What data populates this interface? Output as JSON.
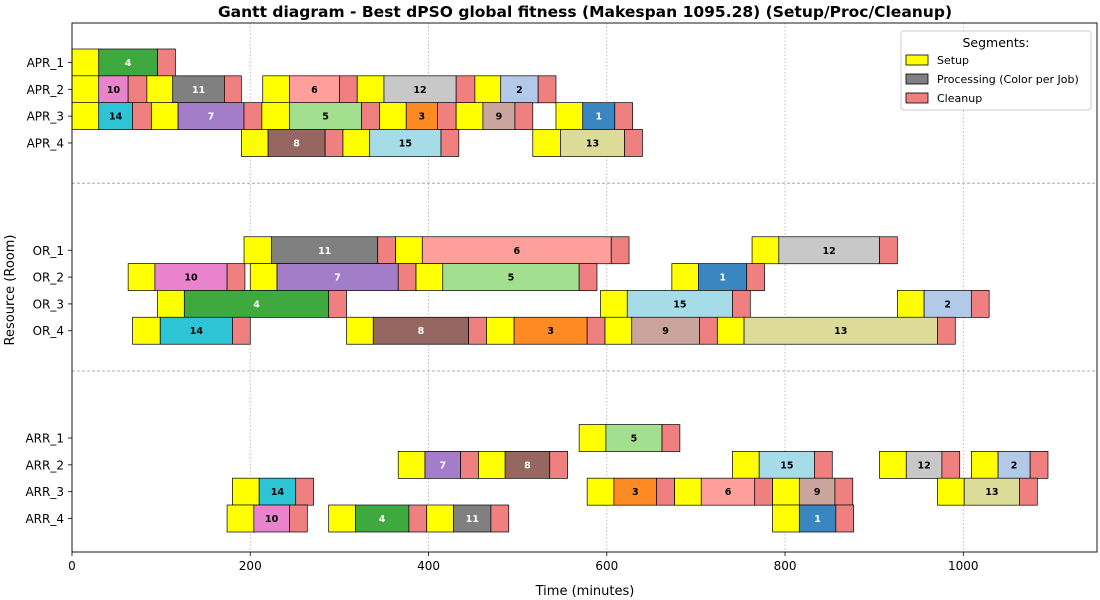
{
  "chart_data": {
    "type": "gantt",
    "title": "Gantt diagram - Best dPSO global fitness (Makespan 1095.28) (Setup/Proc/Cleanup)",
    "xlabel": "Time (minutes)",
    "ylabel": "Resource (Room)",
    "xlim": [
      0,
      1150
    ],
    "xticks": [
      0,
      200,
      400,
      600,
      800,
      1000
    ],
    "grid": true,
    "legend": {
      "title": "Segments:",
      "position": "top-right",
      "entries": [
        {
          "label": "Setup",
          "color": "#ffff00"
        },
        {
          "label": "Processing (Color per Job)",
          "color": "#808080"
        },
        {
          "label": "Cleanup",
          "color": "#f08080"
        }
      ]
    },
    "segment_colors": {
      "setup": "#ffff00",
      "cleanup": "#f08080"
    },
    "job_colors": {
      "1": "#3a86c0",
      "2": "#b3c9e8",
      "3": "#fd8a23",
      "4": "#3ea93e",
      "5": "#a2e08f",
      "6": "#ff9f9b",
      "7": "#a37dc7",
      "8": "#966660",
      "9": "#c9a59d",
      "10": "#e883cc",
      "11": "#808080",
      "12": "#c8c8c8",
      "13": "#dcdc98",
      "14": "#2dc4d6",
      "15": "#a6dce8"
    },
    "light_label_jobs": [
      "1",
      "4",
      "7",
      "8",
      "11"
    ],
    "groups": [
      {
        "rooms": [
          {
            "name": "APR_1",
            "tasks": [
              {
                "job": "4",
                "setup": [
                  0,
                  30
                ],
                "proc": [
                  30,
                  96
                ],
                "clean": [
                  96,
                  116
                ]
              }
            ]
          },
          {
            "name": "APR_2",
            "tasks": [
              {
                "job": "10",
                "setup": [
                  0,
                  30
                ],
                "proc": [
                  30,
                  63
                ],
                "clean": [
                  63,
                  84
                ]
              },
              {
                "job": "11",
                "setup": [
                  84,
                  113
                ],
                "proc": [
                  113,
                  171
                ],
                "clean": [
                  171,
                  190
                ]
              },
              {
                "job": "6",
                "setup": [
                  214,
                  244
                ],
                "proc": [
                  244,
                  300
                ],
                "clean": [
                  300,
                  320
                ]
              },
              {
                "job": "12",
                "setup": [
                  320,
                  350
                ],
                "proc": [
                  350,
                  431
                ],
                "clean": [
                  431,
                  452
                ]
              },
              {
                "job": "2",
                "setup": [
                  452,
                  481
                ],
                "proc": [
                  481,
                  523
                ],
                "clean": [
                  523,
                  543
                ]
              }
            ]
          },
          {
            "name": "APR_3",
            "tasks": [
              {
                "job": "14",
                "setup": [
                  0,
                  30
                ],
                "proc": [
                  30,
                  68
                ],
                "clean": [
                  68,
                  89
                ]
              },
              {
                "job": "7",
                "setup": [
                  89,
                  119
                ],
                "proc": [
                  119,
                  193
                ],
                "clean": [
                  193,
                  213
                ]
              },
              {
                "job": "5",
                "setup": [
                  213,
                  244
                ],
                "proc": [
                  244,
                  325
                ],
                "clean": [
                  325,
                  345
                ]
              },
              {
                "job": "3",
                "setup": [
                  345,
                  375
                ],
                "proc": [
                  375,
                  410
                ],
                "clean": [
                  410,
                  431
                ]
              },
              {
                "job": "9",
                "setup": [
                  431,
                  461
                ],
                "proc": [
                  461,
                  497
                ],
                "clean": [
                  497,
                  517
                ]
              },
              {
                "job": "1",
                "setup": [
                  543,
                  573
                ],
                "proc": [
                  573,
                  609
                ],
                "clean": [
                  609,
                  629
                ]
              }
            ]
          },
          {
            "name": "APR_4",
            "tasks": [
              {
                "job": "8",
                "setup": [
                  190,
                  220
                ],
                "proc": [
                  220,
                  284
                ],
                "clean": [
                  284,
                  304
                ]
              },
              {
                "job": "15",
                "setup": [
                  304,
                  334
                ],
                "proc": [
                  334,
                  414
                ],
                "clean": [
                  414,
                  434
                ]
              },
              {
                "job": "13",
                "setup": [
                  517,
                  548
                ],
                "proc": [
                  548,
                  620
                ],
                "clean": [
                  620,
                  640
                ]
              }
            ]
          }
        ]
      },
      {
        "rooms": [
          {
            "name": "OR_1",
            "tasks": [
              {
                "job": "11",
                "setup": [
                  193,
                  224
                ],
                "proc": [
                  224,
                  343
                ],
                "clean": [
                  343,
                  363
                ]
              },
              {
                "job": "6",
                "setup": [
                  363,
                  393
                ],
                "proc": [
                  393,
                  605
                ],
                "clean": [
                  605,
                  625
                ]
              },
              {
                "job": "12",
                "setup": [
                  763,
                  793
                ],
                "proc": [
                  793,
                  906
                ],
                "clean": [
                  906,
                  926
                ]
              }
            ]
          },
          {
            "name": "OR_2",
            "tasks": [
              {
                "job": "10",
                "setup": [
                  63,
                  93
                ],
                "proc": [
                  93,
                  174
                ],
                "clean": [
                  174,
                  194
                ]
              },
              {
                "job": "7",
                "setup": [
                  200,
                  230
                ],
                "proc": [
                  230,
                  366
                ],
                "clean": [
                  366,
                  386
                ]
              },
              {
                "job": "5",
                "setup": [
                  386,
                  416
                ],
                "proc": [
                  416,
                  569
                ],
                "clean": [
                  569,
                  589
                ]
              },
              {
                "job": "1",
                "setup": [
                  673,
                  703
                ],
                "proc": [
                  703,
                  757
                ],
                "clean": [
                  757,
                  777
                ]
              }
            ]
          },
          {
            "name": "OR_3",
            "tasks": [
              {
                "job": "4",
                "setup": [
                  96,
                  126
                ],
                "proc": [
                  126,
                  288
                ],
                "clean": [
                  288,
                  308
                ]
              },
              {
                "job": "15",
                "setup": [
                  593,
                  623
                ],
                "proc": [
                  623,
                  741
                ],
                "clean": [
                  741,
                  761
                ]
              },
              {
                "job": "2",
                "setup": [
                  926,
                  956
                ],
                "proc": [
                  956,
                  1009
                ],
                "clean": [
                  1009,
                  1029
                ]
              }
            ]
          },
          {
            "name": "OR_4",
            "tasks": [
              {
                "job": "14",
                "setup": [
                  68,
                  99
                ],
                "proc": [
                  99,
                  180
                ],
                "clean": [
                  180,
                  200
                ]
              },
              {
                "job": "8",
                "setup": [
                  308,
                  338
                ],
                "proc": [
                  338,
                  445
                ],
                "clean": [
                  445,
                  465
                ]
              },
              {
                "job": "3",
                "setup": [
                  465,
                  496
                ],
                "proc": [
                  496,
                  578
                ],
                "clean": [
                  578,
                  598
                ]
              },
              {
                "job": "9",
                "setup": [
                  598,
                  628
                ],
                "proc": [
                  628,
                  704
                ],
                "clean": [
                  704,
                  724
                ]
              },
              {
                "job": "13",
                "setup": [
                  724,
                  754
                ],
                "proc": [
                  754,
                  971
                ],
                "clean": [
                  971,
                  991
                ]
              }
            ]
          }
        ]
      },
      {
        "rooms": [
          {
            "name": "ARR_1",
            "tasks": [
              {
                "job": "5",
                "setup": [
                  569,
                  599
                ],
                "proc": [
                  599,
                  662
                ],
                "clean": [
                  662,
                  682
                ]
              }
            ]
          },
          {
            "name": "ARR_2",
            "tasks": [
              {
                "job": "7",
                "setup": [
                  366,
                  396
                ],
                "proc": [
                  396,
                  436
                ],
                "clean": [
                  436,
                  456
                ]
              },
              {
                "job": "8",
                "setup": [
                  456,
                  486
                ],
                "proc": [
                  486,
                  536
                ],
                "clean": [
                  536,
                  556
                ]
              },
              {
                "job": "15",
                "setup": [
                  741,
                  771
                ],
                "proc": [
                  771,
                  833
                ],
                "clean": [
                  833,
                  853
                ]
              },
              {
                "job": "12",
                "setup": [
                  906,
                  936
                ],
                "proc": [
                  936,
                  976
                ],
                "clean": [
                  976,
                  996
                ]
              },
              {
                "job": "2",
                "setup": [
                  1009,
                  1039
                ],
                "proc": [
                  1039,
                  1075
                ],
                "clean": [
                  1075,
                  1095
                ]
              }
            ]
          },
          {
            "name": "ARR_3",
            "tasks": [
              {
                "job": "14",
                "setup": [
                  180,
                  210
                ],
                "proc": [
                  210,
                  251
                ],
                "clean": [
                  251,
                  271
                ]
              },
              {
                "job": "3",
                "setup": [
                  578,
                  608
                ],
                "proc": [
                  608,
                  656
                ],
                "clean": [
                  656,
                  676
                ]
              },
              {
                "job": "6",
                "setup": [
                  676,
                  706
                ],
                "proc": [
                  706,
                  766
                ],
                "clean": [
                  766,
                  786
                ]
              },
              {
                "job": "9",
                "setup": [
                  786,
                  816
                ],
                "proc": [
                  816,
                  856
                ],
                "clean": [
                  856,
                  876
                ]
              },
              {
                "job": "13",
                "setup": [
                  971,
                  1001
                ],
                "proc": [
                  1001,
                  1063
                ],
                "clean": [
                  1063,
                  1083
                ]
              }
            ]
          },
          {
            "name": "ARR_4",
            "tasks": [
              {
                "job": "10",
                "setup": [
                  174,
                  204
                ],
                "proc": [
                  204,
                  244
                ],
                "clean": [
                  244,
                  264
                ]
              },
              {
                "job": "4",
                "setup": [
                  288,
                  318
                ],
                "proc": [
                  318,
                  378
                ],
                "clean": [
                  378,
                  398
                ]
              },
              {
                "job": "11",
                "setup": [
                  398,
                  428
                ],
                "proc": [
                  428,
                  470
                ],
                "clean": [
                  470,
                  490
                ]
              },
              {
                "job": "1",
                "setup": [
                  786,
                  816
                ],
                "proc": [
                  816,
                  857
                ],
                "clean": [
                  857,
                  877
                ]
              }
            ]
          }
        ]
      }
    ]
  }
}
